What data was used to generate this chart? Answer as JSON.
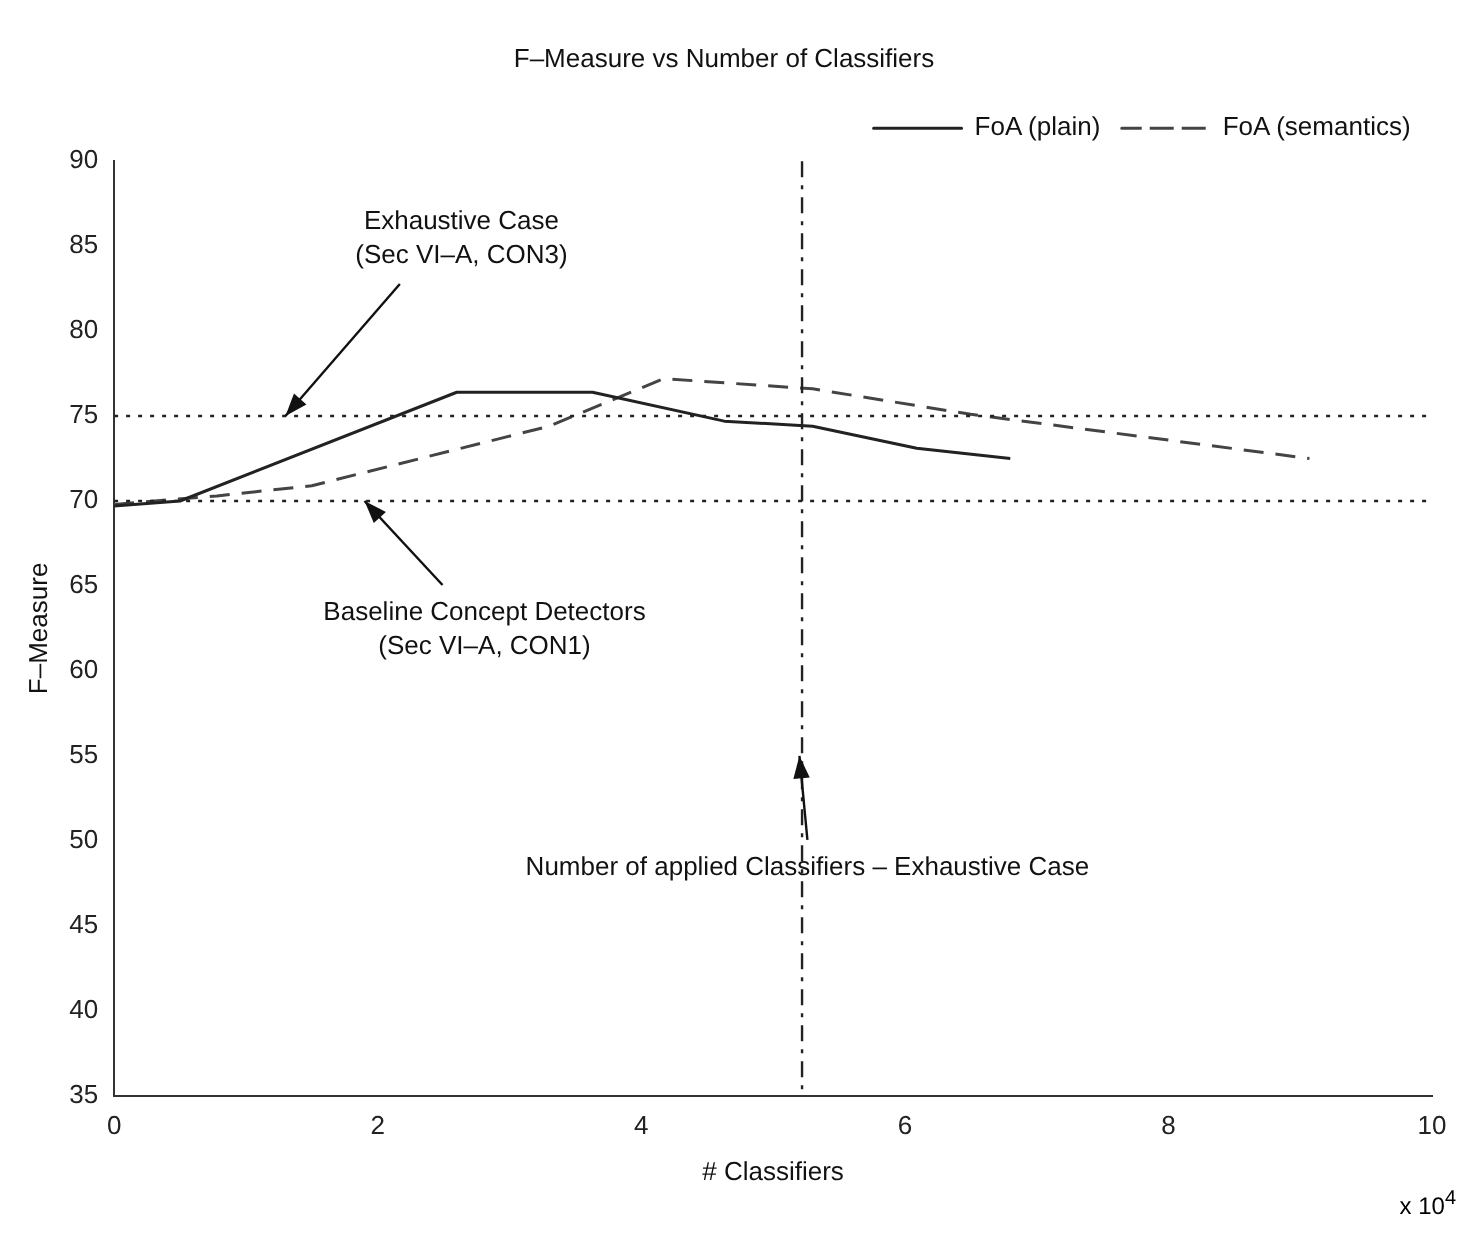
{
  "chart_data": {
    "type": "line",
    "title": "F–Measure vs Number of Classifiers",
    "xlabel": "# Classifiers",
    "ylabel": "F–Measure",
    "xlim": [
      0,
      10
    ],
    "xticks": [
      0,
      2,
      4,
      6,
      8,
      {
        "value": 10,
        "label": "10"
      }
    ],
    "ylim": [
      35,
      90
    ],
    "yticks": [
      35,
      40,
      45,
      50,
      55,
      60,
      65,
      70,
      75,
      80,
      85,
      90
    ],
    "series": [
      {
        "name": "FoA (plain)",
        "color": "#222222",
        "line_style": "solid",
        "x": [
          0,
          0.5,
          2.6,
          3.63,
          4.63,
          5.3,
          6.09,
          6.8
        ],
        "values": [
          69.7,
          70,
          76.4,
          76.4,
          74.7,
          74.4,
          73.1,
          72.5
        ]
      },
      {
        "name": "FoA (semantics)",
        "color": "#444444",
        "line_style": "dashed",
        "x": [
          0,
          0.78,
          1.5,
          3.3,
          4.17,
          5.3,
          6.5,
          9.07
        ],
        "values": [
          69.8,
          70.3,
          70.9,
          74.4,
          77.2,
          76.6,
          75.1,
          72.5
        ]
      }
    ],
    "ref_lines": [
      {
        "axis": "y",
        "value": 75,
        "color": "#222222",
        "line_style": "dotted"
      },
      {
        "axis": "y",
        "value": 70,
        "color": "#222222",
        "line_style": "dotted"
      },
      {
        "axis": "x",
        "value": 5.22,
        "color": "#222222",
        "line_style": "dashdot"
      }
    ],
    "annotations": [
      {
        "text": "Exhaustive Case (Sec VI–A, CON3)",
        "x": 1.3,
        "y": 75
      },
      {
        "text": "Baseline Concept Detectors (Sec VI–A, CON1)",
        "x": 1.9,
        "y": 70
      },
      {
        "text": "Number of applied Classifiers – Exhaustive Case",
        "x": 5.2,
        "y": 55
      },
      "x 10$^{4}$"
    ],
    "legend": "top right",
    "grid": false,
    "marker": "none"
  }
}
